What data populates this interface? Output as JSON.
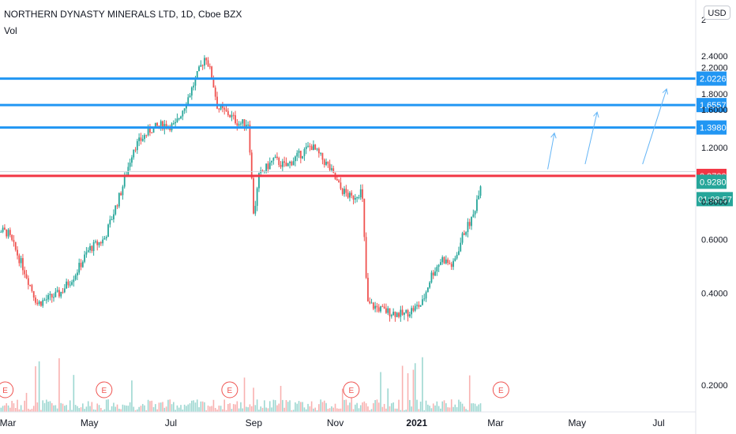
{
  "header": {
    "title": "NORTHERN DYNASTY MINERALS LTD, 1D, Cboe BZX",
    "volume_label": "Vol"
  },
  "currency_button": "USD",
  "colors": {
    "up": "#26a69a",
    "down": "#ef5350",
    "level_line": "#2196f3",
    "resistance_line": "#f23645",
    "price_tag": "#26a69a",
    "annotation_arrow": "#64b5f6",
    "earnings": "#ef5350"
  },
  "chart_data": {
    "type": "candlestick",
    "y_axis": {
      "scale": "log",
      "range": [
        0.155,
        2.7
      ],
      "tick_labels": [
        "0.2000",
        "0.4000",
        "0.6000",
        "1.2000",
        "1.8000",
        "2.2000",
        "2.4000"
      ],
      "partially_hidden_tick_labels": [
        "1.6000",
        "0.8000"
      ],
      "cut_off_tick_label": "2"
    },
    "x_axis": {
      "tick_labels": [
        "Mar",
        "May",
        "Jul",
        "Sep",
        "Nov",
        "2021",
        "Mar",
        "May",
        "Jul"
      ],
      "bold_labels": [
        "2021"
      ]
    },
    "horizontal_levels": [
      {
        "price": 2.0226,
        "label": "2.0226",
        "color": "#2196f3"
      },
      {
        "price": 1.6557,
        "label": "1.6557",
        "color": "#2196f3"
      },
      {
        "price": 1.398,
        "label": "1.3980",
        "color": "#2196f3"
      },
      {
        "price": 0.97,
        "label": "0.9700",
        "color": "#f23645"
      }
    ],
    "last_price": {
      "price": 0.928,
      "label": "0.9280",
      "countdown": "01:08:57"
    },
    "earnings_markers": [
      {
        "date": "2020-02-28",
        "label": "E"
      },
      {
        "date": "2020-05-12",
        "label": "E"
      },
      {
        "date": "2020-08-14",
        "label": "E"
      },
      {
        "date": "2020-11-13",
        "label": "E"
      },
      {
        "date": "2021-03-05",
        "label": "E"
      }
    ],
    "annotation_arrows": [
      {
        "from": {
          "date": "2021-04-09",
          "price": 1.02
        },
        "to": {
          "date": "2021-04-14",
          "price": 1.34
        }
      },
      {
        "from": {
          "date": "2021-05-07",
          "price": 1.06
        },
        "to": {
          "date": "2021-05-16",
          "price": 1.57
        }
      },
      {
        "from": {
          "date": "2021-06-19",
          "price": 1.06
        },
        "to": {
          "date": "2021-07-07",
          "price": 1.87
        }
      }
    ],
    "price_path": [
      {
        "date": "2020-02-14",
        "close": 0.67
      },
      {
        "date": "2020-03-01",
        "close": 0.63
      },
      {
        "date": "2020-03-13",
        "close": 0.48
      },
      {
        "date": "2020-03-23",
        "close": 0.37
      },
      {
        "date": "2020-04-09",
        "close": 0.4
      },
      {
        "date": "2020-04-20",
        "close": 0.46
      },
      {
        "date": "2020-05-01",
        "close": 0.56
      },
      {
        "date": "2020-05-12",
        "close": 0.6
      },
      {
        "date": "2020-05-25",
        "close": 0.87
      },
      {
        "date": "2020-06-03",
        "close": 1.2
      },
      {
        "date": "2020-06-16",
        "close": 1.38
      },
      {
        "date": "2020-06-25",
        "close": 1.43
      },
      {
        "date": "2020-07-04",
        "close": 1.41
      },
      {
        "date": "2020-07-15",
        "close": 1.8
      },
      {
        "date": "2020-07-27",
        "close": 2.42
      },
      {
        "date": "2020-08-01",
        "close": 2.02
      },
      {
        "date": "2020-08-05",
        "close": 1.62
      },
      {
        "date": "2020-08-13",
        "close": 1.55
      },
      {
        "date": "2020-08-21",
        "close": 1.44
      },
      {
        "date": "2020-08-28",
        "close": 1.45
      },
      {
        "date": "2020-09-01",
        "close": 0.72
      },
      {
        "date": "2020-09-05",
        "close": 0.97
      },
      {
        "date": "2020-09-16",
        "close": 1.1
      },
      {
        "date": "2020-09-25",
        "close": 1.04
      },
      {
        "date": "2020-10-01",
        "close": 1.1
      },
      {
        "date": "2020-10-14",
        "close": 1.22
      },
      {
        "date": "2020-10-27",
        "close": 1.04
      },
      {
        "date": "2020-11-05",
        "close": 0.88
      },
      {
        "date": "2020-11-13",
        "close": 0.82
      },
      {
        "date": "2020-11-21",
        "close": 0.87
      },
      {
        "date": "2020-11-25",
        "close": 0.37
      },
      {
        "date": "2020-12-08",
        "close": 0.35
      },
      {
        "date": "2020-12-22",
        "close": 0.34
      },
      {
        "date": "2021-01-05",
        "close": 0.37
      },
      {
        "date": "2021-01-12",
        "close": 0.46
      },
      {
        "date": "2021-01-20",
        "close": 0.52
      },
      {
        "date": "2021-01-28",
        "close": 0.49
      },
      {
        "date": "2021-02-05",
        "close": 0.63
      },
      {
        "date": "2021-02-12",
        "close": 0.71
      },
      {
        "date": "2021-02-18",
        "close": 0.93
      }
    ]
  }
}
